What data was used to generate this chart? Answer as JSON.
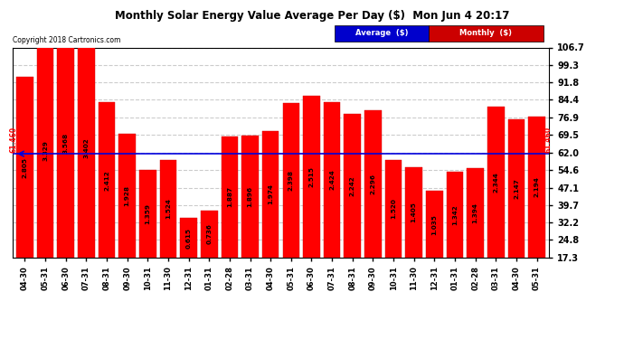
{
  "title": "Monthly Solar Energy Value Average Per Day ($)  Mon Jun 4 20:17",
  "copyright": "Copyright 2018 Cartronics.com",
  "average_value": 61.46,
  "categories": [
    "04-30",
    "05-31",
    "06-30",
    "07-31",
    "08-31",
    "09-30",
    "10-31",
    "11-30",
    "12-31",
    "01-31",
    "02-28",
    "03-31",
    "04-30",
    "05-31",
    "06-30",
    "07-31",
    "08-31",
    "09-30",
    "10-31",
    "11-30",
    "12-31",
    "01-31",
    "02-28",
    "03-31",
    "04-30",
    "05-31"
  ],
  "values": [
    2.805,
    3.329,
    3.568,
    3.402,
    2.412,
    1.928,
    1.359,
    1.524,
    0.615,
    0.736,
    1.887,
    1.896,
    1.974,
    2.398,
    2.515,
    2.424,
    2.242,
    2.296,
    1.52,
    1.405,
    1.035,
    1.342,
    1.394,
    2.344,
    2.147,
    2.194
  ],
  "scale_factor": 27.35,
  "bar_color": "#ff0000",
  "bg_color": "#ffffff",
  "grid_color": "#cccccc",
  "average_line_color": "#0000dd",
  "title_color": "#000000",
  "ytick_labels": [
    "17.3",
    "24.8",
    "32.2",
    "39.7",
    "47.1",
    "54.6",
    "62.0",
    "69.5",
    "76.9",
    "84.4",
    "91.8",
    "99.3",
    "106.7"
  ],
  "ytick_values": [
    17.3,
    24.8,
    32.2,
    39.7,
    47.1,
    54.6,
    62.0,
    69.5,
    76.9,
    84.4,
    91.8,
    99.3,
    106.7
  ],
  "ymin": 17.3,
  "ymax": 106.7,
  "legend_avg_color": "#0000cc",
  "legend_mon_color": "#cc0000"
}
